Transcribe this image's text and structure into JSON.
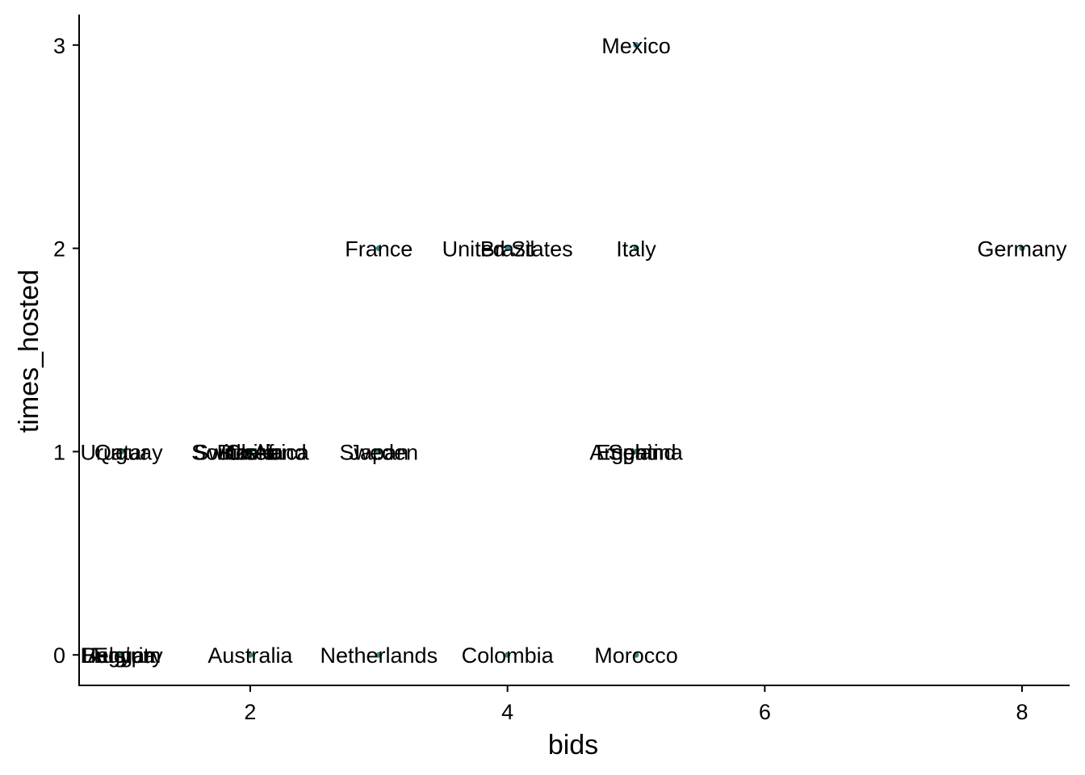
{
  "colors": {
    "point": "#2e8b87",
    "axis": "#000000",
    "text": "#000000"
  },
  "chart_data": {
    "type": "scatter",
    "title": "",
    "xlabel": "bids",
    "ylabel": "times_hosted",
    "xlim": [
      0.67,
      8.37
    ],
    "ylim": [
      -0.15,
      3.15
    ],
    "x_ticks": [
      2,
      4,
      6,
      8
    ],
    "y_ticks": [
      0,
      1,
      2,
      3
    ],
    "grid": false,
    "points": [
      {
        "label": "Mexico",
        "x": 5,
        "y": 3
      },
      {
        "label": "France",
        "x": 3,
        "y": 2
      },
      {
        "label": "United States",
        "x": 4,
        "y": 2
      },
      {
        "label": "Brazil",
        "x": 4,
        "y": 2
      },
      {
        "label": "Italy",
        "x": 5,
        "y": 2
      },
      {
        "label": "Germany",
        "x": 8,
        "y": 2
      },
      {
        "label": "Uruguay",
        "x": 1,
        "y": 1
      },
      {
        "label": "Qatar",
        "x": 1,
        "y": 1
      },
      {
        "label": "South Africa",
        "x": 2,
        "y": 1
      },
      {
        "label": "Switzerland",
        "x": 2,
        "y": 1
      },
      {
        "label": "Chile",
        "x": 2,
        "y": 1
      },
      {
        "label": "Korea",
        "x": 2,
        "y": 1
      },
      {
        "label": "Russia",
        "x": 2,
        "y": 1
      },
      {
        "label": "Sweden",
        "x": 3,
        "y": 1
      },
      {
        "label": "Japan",
        "x": 3,
        "y": 1
      },
      {
        "label": "Argentina",
        "x": 5,
        "y": 1
      },
      {
        "label": "England",
        "x": 5,
        "y": 1
      },
      {
        "label": "Spain",
        "x": 5,
        "y": 1
      },
      {
        "label": "Belgium",
        "x": 1,
        "y": 0
      },
      {
        "label": "Hungary",
        "x": 1,
        "y": 0
      },
      {
        "label": "Egypt",
        "x": 1,
        "y": 0
      },
      {
        "label": "Austria",
        "x": 1,
        "y": 0
      },
      {
        "label": "Australia",
        "x": 2,
        "y": 0
      },
      {
        "label": "Netherlands",
        "x": 3,
        "y": 0
      },
      {
        "label": "Colombia",
        "x": 4,
        "y": 0
      },
      {
        "label": "Morocco",
        "x": 5,
        "y": 0
      }
    ]
  }
}
